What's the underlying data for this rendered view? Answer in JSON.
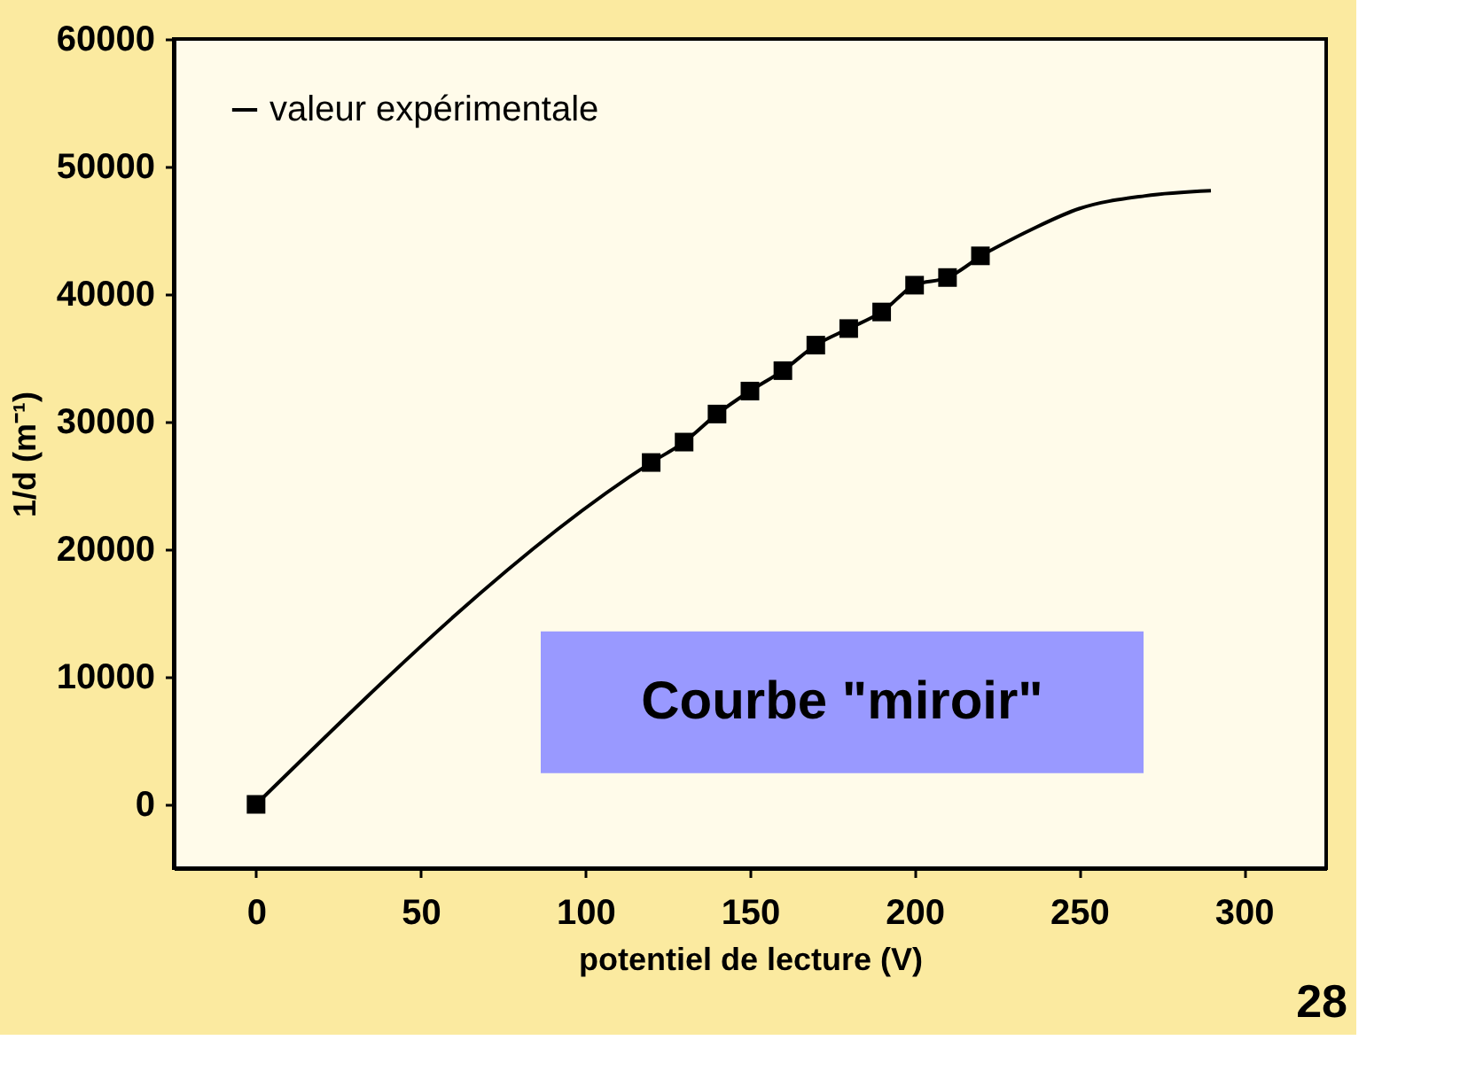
{
  "chart_data": {
    "type": "line",
    "xlabel": "potentiel de lecture (V)",
    "ylabel": "1/d (m⁻¹)",
    "xlim": [
      -25,
      325
    ],
    "xticks": [
      0,
      50,
      100,
      150,
      200,
      250,
      300
    ],
    "ylim": [
      -5000,
      60000
    ],
    "yticks": [
      0,
      10000,
      20000,
      30000,
      40000,
      50000,
      60000
    ],
    "grid": false,
    "legend": "top left",
    "marker": "square",
    "line_style": "solid",
    "series": [
      {
        "name": "valeur expérimentale",
        "color": "#000000",
        "x": [
          0,
          120,
          130,
          140,
          150,
          160,
          170,
          180,
          190,
          200,
          210,
          220
        ],
        "values": [
          0,
          26800,
          28400,
          30600,
          32400,
          34000,
          36000,
          37300,
          38600,
          40700,
          41300,
          43000
        ]
      },
      {
        "type": "line",
        "marker": "none",
        "color": "#000000",
        "x": [
          220,
          235,
          250,
          270,
          290
        ],
        "values": [
          43000,
          45000,
          46700,
          47700,
          48100
        ]
      }
    ],
    "annotations": [
      "Courbe \"miroir\"",
      "28"
    ]
  }
}
